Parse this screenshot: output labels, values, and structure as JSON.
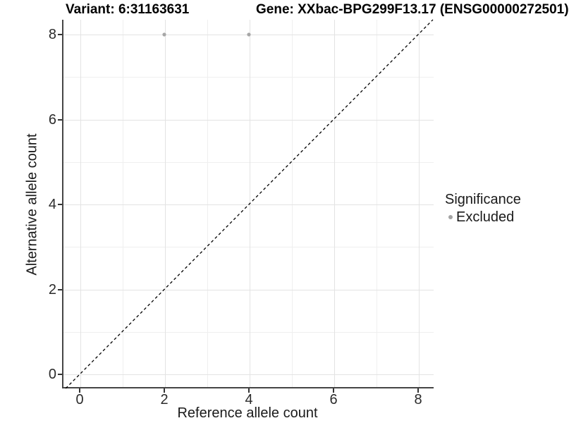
{
  "titles": {
    "variant": "Variant: 6:31163631",
    "gene": "Gene: XXbac-BPG299F13.17 (ENSG00000272501)"
  },
  "axes": {
    "x": {
      "label": "Reference allele count",
      "ticks": [
        "0",
        "2",
        "4",
        "6",
        "8"
      ]
    },
    "y": {
      "label": "Alternative allele count",
      "ticks": [
        "0",
        "2",
        "4",
        "6",
        "8"
      ]
    }
  },
  "legend": {
    "title": "Significance",
    "items": [
      {
        "label": "Excluded",
        "color": "#a3a3a3"
      }
    ]
  },
  "colors": {
    "background": "#ffffff",
    "grid_major": "#e3e3e3",
    "grid_minor": "#efefef",
    "axis_line": "#454545",
    "tick_mark": "#333333",
    "tick_label": "#2b2b2b",
    "title_text": "#000000",
    "point": "#a6a6a6",
    "identity_line": "#000000"
  },
  "chart_data": {
    "type": "scatter",
    "title": "Variant: 6:31163631 | Gene: XXbac-BPG299F13.17 (ENSG00000272501)",
    "xlabel": "Reference allele count",
    "ylabel": "Alternative allele count",
    "xlim": [
      -0.45,
      8.4
    ],
    "ylim": [
      -0.35,
      8.35
    ],
    "x_ticks": [
      0,
      2,
      4,
      6,
      8
    ],
    "y_ticks": [
      0,
      2,
      4,
      6,
      8
    ],
    "x_minor_ticks": [
      1,
      3,
      5,
      7
    ],
    "y_minor_ticks": [
      1,
      3,
      5,
      7
    ],
    "grid": true,
    "legend_position": "right",
    "series": [
      {
        "name": "Excluded",
        "color": "#a6a6a6",
        "points": [
          {
            "x": 2,
            "y": 8
          },
          {
            "x": 4,
            "y": 8
          }
        ]
      }
    ],
    "reference_line": {
      "kind": "identity y=x",
      "style": "dashed",
      "color": "#000000"
    }
  }
}
